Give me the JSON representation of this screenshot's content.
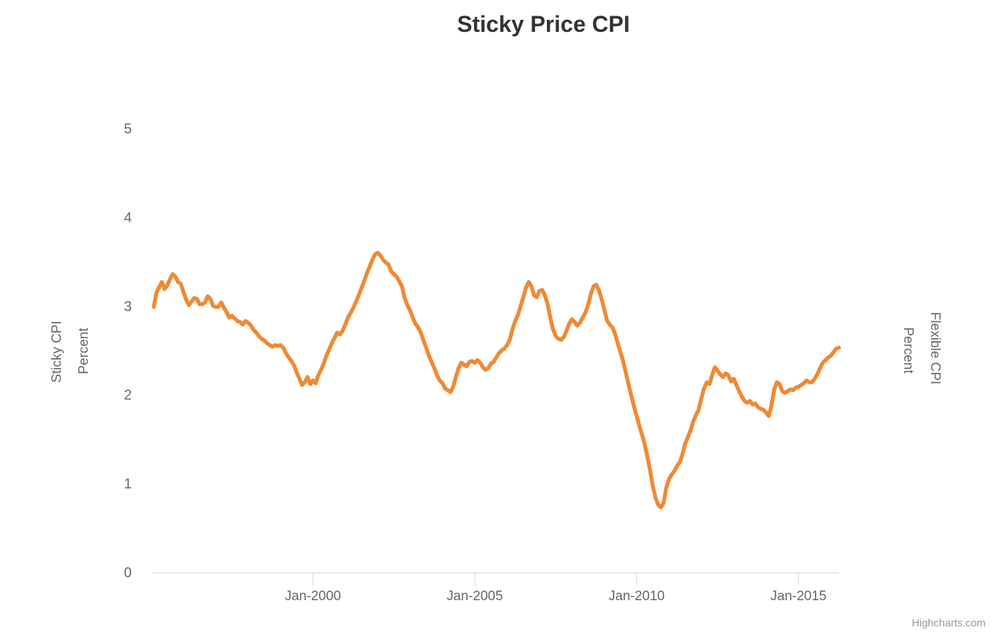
{
  "chart_data": {
    "type": "line",
    "title": "Sticky Price CPI",
    "legend": false,
    "grid": false,
    "background": "#ffffff",
    "y_axis": {
      "min": 0,
      "max": 5,
      "tick_interval": 1,
      "tick_labels": [
        "0",
        "1",
        "2",
        "3",
        "4",
        "5"
      ]
    },
    "y_axis_left": {
      "title": "Sticky CPI",
      "subtitle": "Percent"
    },
    "y_axis_right": {
      "title": "Flexible CPI",
      "subtitle": "Percent"
    },
    "x_axis": {
      "frequency": "monthly",
      "start": "Feb-1995",
      "end": "Apr-2016",
      "ticks": [
        {
          "label": "Jan-2000",
          "month_index": 59
        },
        {
          "label": "Jan-2005",
          "month_index": 119
        },
        {
          "label": "Jan-2010",
          "month_index": 179
        },
        {
          "label": "Jan-2015",
          "month_index": 239
        }
      ]
    },
    "series": [
      {
        "name": "Sticky CPI",
        "color": "#EE8A35",
        "line_width": 5.5,
        "values": [
          2.99,
          3.15,
          3.21,
          3.27,
          3.19,
          3.23,
          3.3,
          3.36,
          3.33,
          3.27,
          3.25,
          3.16,
          3.07,
          3.01,
          3.05,
          3.09,
          3.08,
          3.02,
          3.02,
          3.04,
          3.11,
          3.08,
          3.0,
          2.99,
          2.99,
          3.04,
          2.98,
          2.93,
          2.87,
          2.89,
          2.86,
          2.83,
          2.82,
          2.79,
          2.83,
          2.81,
          2.78,
          2.73,
          2.7,
          2.66,
          2.63,
          2.61,
          2.58,
          2.56,
          2.54,
          2.56,
          2.55,
          2.56,
          2.53,
          2.47,
          2.42,
          2.38,
          2.33,
          2.25,
          2.18,
          2.11,
          2.14,
          2.2,
          2.12,
          2.16,
          2.13,
          2.22,
          2.28,
          2.35,
          2.44,
          2.51,
          2.58,
          2.64,
          2.7,
          2.68,
          2.72,
          2.79,
          2.87,
          2.92,
          2.98,
          3.05,
          3.12,
          3.2,
          3.28,
          3.37,
          3.44,
          3.52,
          3.58,
          3.6,
          3.57,
          3.52,
          3.49,
          3.47,
          3.39,
          3.36,
          3.33,
          3.28,
          3.22,
          3.09,
          3.01,
          2.95,
          2.87,
          2.8,
          2.76,
          2.7,
          2.61,
          2.53,
          2.44,
          2.37,
          2.3,
          2.22,
          2.16,
          2.13,
          2.07,
          2.05,
          2.03,
          2.09,
          2.2,
          2.3,
          2.36,
          2.34,
          2.32,
          2.37,
          2.38,
          2.36,
          2.39,
          2.36,
          2.31,
          2.28,
          2.3,
          2.35,
          2.37,
          2.42,
          2.47,
          2.5,
          2.52,
          2.56,
          2.62,
          2.74,
          2.83,
          2.9,
          3.0,
          3.1,
          3.21,
          3.27,
          3.22,
          3.12,
          3.1,
          3.17,
          3.18,
          3.12,
          3.02,
          2.87,
          2.74,
          2.66,
          2.63,
          2.62,
          2.65,
          2.72,
          2.8,
          2.85,
          2.82,
          2.78,
          2.81,
          2.87,
          2.92,
          3.01,
          3.13,
          3.22,
          3.24,
          3.18,
          3.08,
          2.96,
          2.84,
          2.79,
          2.76,
          2.69,
          2.58,
          2.48,
          2.38,
          2.25,
          2.12,
          1.99,
          1.87,
          1.76,
          1.65,
          1.55,
          1.44,
          1.3,
          1.15,
          0.97,
          0.84,
          0.76,
          0.73,
          0.78,
          0.95,
          1.05,
          1.1,
          1.14,
          1.2,
          1.24,
          1.33,
          1.45,
          1.52,
          1.6,
          1.7,
          1.77,
          1.83,
          1.96,
          2.07,
          2.14,
          2.12,
          2.22,
          2.31,
          2.27,
          2.23,
          2.2,
          2.24,
          2.22,
          2.15,
          2.18,
          2.11,
          2.04,
          1.98,
          1.93,
          1.91,
          1.93,
          1.89,
          1.9,
          1.86,
          1.84,
          1.83,
          1.8,
          1.76,
          1.88,
          2.06,
          2.14,
          2.12,
          2.04,
          2.02,
          2.04,
          2.06,
          2.05,
          2.08,
          2.09,
          2.11,
          2.13,
          2.16,
          2.14,
          2.14,
          2.18,
          2.23,
          2.3,
          2.36,
          2.39,
          2.42,
          2.44,
          2.48,
          2.52,
          2.53
        ]
      }
    ],
    "colors": {
      "line": "#EE8A35",
      "axis_line": "#CCD6EB",
      "label_text": "#666666",
      "title_text": "#333333",
      "credits_text": "#999999"
    }
  },
  "credits": {
    "label": "Highcharts.com"
  }
}
